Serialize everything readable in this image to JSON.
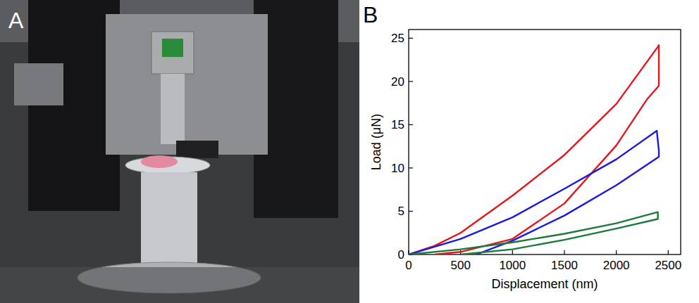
{
  "photo": {
    "label": "A"
  },
  "chart_data": {
    "type": "line",
    "panel_label": "B",
    "x_label": "Displacement (nm)",
    "y_label": "Load (μN)",
    "xlim": [
      0,
      2620
    ],
    "xticks": [
      0,
      500,
      1000,
      1500,
      2000,
      2500
    ],
    "ylim": [
      0,
      26
    ],
    "yticks": [
      0,
      5,
      10,
      15,
      20,
      25
    ],
    "series": [
      {
        "color": "#e8141b",
        "line_style": "solid",
        "x": [
          0,
          250,
          500,
          1000,
          1500,
          2000,
          2400,
          2410,
          2410,
          2300,
          2000,
          1500,
          1000,
          500,
          250
        ],
        "values": [
          0,
          1,
          2.5,
          6.8,
          11.5,
          17.4,
          24.0,
          24.2,
          19.5,
          18,
          12.6,
          5.9,
          1.8,
          0.3,
          0
        ]
      },
      {
        "color": "#1a1adf",
        "line_style": "solid",
        "x": [
          0,
          500,
          1000,
          1500,
          2000,
          2390,
          2410,
          2410,
          2000,
          1500,
          1000,
          650
        ],
        "values": [
          0,
          1.8,
          4.3,
          7.6,
          11,
          14.3,
          12,
          11.3,
          8,
          4.5,
          1.6,
          0
        ]
      },
      {
        "color": "#1a7a3a",
        "line_style": "solid",
        "x": [
          0,
          500,
          1000,
          1500,
          2000,
          2400,
          2400,
          2000,
          1500,
          1000,
          500
        ],
        "values": [
          0,
          0.6,
          1.4,
          2.4,
          3.6,
          4.9,
          4.1,
          3.0,
          1.7,
          0.6,
          0
        ]
      }
    ]
  }
}
